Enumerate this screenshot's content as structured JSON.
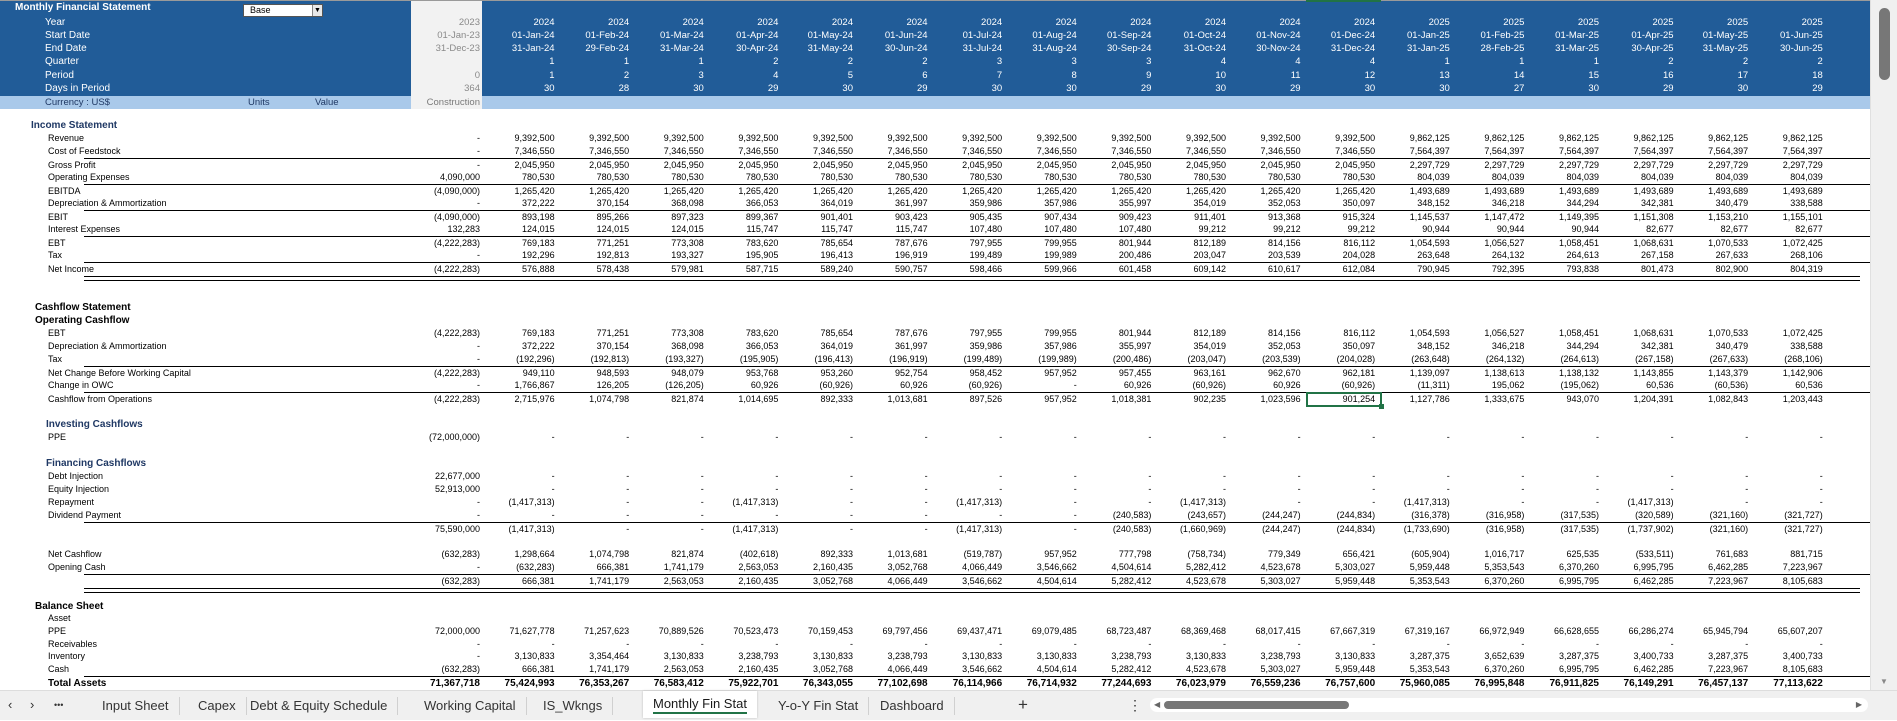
{
  "title": "Monthly Financial Statement",
  "scenario": "Base",
  "header": {
    "rows": [
      {
        "label": "Year",
        "construction": "2023",
        "values": [
          "2024",
          "2024",
          "2024",
          "2024",
          "2024",
          "2024",
          "2024",
          "2024",
          "2024",
          "2024",
          "2024",
          "2024",
          "2025",
          "2025",
          "2025",
          "2025",
          "2025",
          "2025"
        ]
      },
      {
        "label": "Start Date",
        "construction": "01-Jan-23",
        "values": [
          "01-Jan-24",
          "01-Feb-24",
          "01-Mar-24",
          "01-Apr-24",
          "01-May-24",
          "01-Jun-24",
          "01-Jul-24",
          "01-Aug-24",
          "01-Sep-24",
          "01-Oct-24",
          "01-Nov-24",
          "01-Dec-24",
          "01-Jan-25",
          "01-Feb-25",
          "01-Mar-25",
          "01-Apr-25",
          "01-May-25",
          "01-Jun-25"
        ]
      },
      {
        "label": "End Date",
        "construction": "31-Dec-23",
        "values": [
          "31-Jan-24",
          "29-Feb-24",
          "31-Mar-24",
          "30-Apr-24",
          "31-May-24",
          "30-Jun-24",
          "31-Jul-24",
          "31-Aug-24",
          "30-Sep-24",
          "31-Oct-24",
          "30-Nov-24",
          "31-Dec-24",
          "31-Jan-25",
          "28-Feb-25",
          "31-Mar-25",
          "30-Apr-25",
          "31-May-25",
          "30-Jun-25"
        ]
      },
      {
        "label": "Quarter",
        "construction": "",
        "values": [
          "1",
          "1",
          "1",
          "2",
          "2",
          "2",
          "3",
          "3",
          "3",
          "4",
          "4",
          "4",
          "1",
          "1",
          "1",
          "2",
          "2",
          "2"
        ]
      },
      {
        "label": "Period",
        "construction": "0",
        "values": [
          "1",
          "2",
          "3",
          "4",
          "5",
          "6",
          "7",
          "8",
          "9",
          "10",
          "11",
          "12",
          "13",
          "14",
          "15",
          "16",
          "17",
          "18"
        ]
      },
      {
        "label": "Days in Period",
        "construction": "364",
        "values": [
          "30",
          "28",
          "30",
          "29",
          "30",
          "29",
          "30",
          "30",
          "29",
          "30",
          "29",
          "30",
          "30",
          "27",
          "30",
          "29",
          "30",
          "29"
        ]
      }
    ]
  },
  "currency_row": {
    "currency": "Currency : US$",
    "units": "Units",
    "value": "Value",
    "construction": "Construction"
  },
  "rows": [
    {
      "label": "Income Statement"
    },
    {
      "label": "Revenue",
      "values": [
        "-",
        "9,392,500",
        "9,392,500",
        "9,392,500",
        "9,392,500",
        "9,392,500",
        "9,392,500",
        "9,392,500",
        "9,392,500",
        "9,392,500",
        "9,392,500",
        "9,392,500",
        "9,392,500",
        "9,862,125",
        "9,862,125",
        "9,862,125",
        "9,862,125",
        "9,862,125",
        "9,862,125"
      ]
    },
    {
      "label": "Cost of Feedstock",
      "values": [
        "-",
        "7,346,550",
        "7,346,550",
        "7,346,550",
        "7,346,550",
        "7,346,550",
        "7,346,550",
        "7,346,550",
        "7,346,550",
        "7,346,550",
        "7,346,550",
        "7,346,550",
        "7,346,550",
        "7,564,397",
        "7,564,397",
        "7,564,397",
        "7,564,397",
        "7,564,397",
        "7,564,397"
      ]
    },
    {
      "label": "Gross Profit",
      "values": [
        "-",
        "2,045,950",
        "2,045,950",
        "2,045,950",
        "2,045,950",
        "2,045,950",
        "2,045,950",
        "2,045,950",
        "2,045,950",
        "2,045,950",
        "2,045,950",
        "2,045,950",
        "2,045,950",
        "2,297,729",
        "2,297,729",
        "2,297,729",
        "2,297,729",
        "2,297,729",
        "2,297,729"
      ]
    },
    {
      "label": "Operating Expenses",
      "values": [
        "4,090,000",
        "780,530",
        "780,530",
        "780,530",
        "780,530",
        "780,530",
        "780,530",
        "780,530",
        "780,530",
        "780,530",
        "780,530",
        "780,530",
        "780,530",
        "804,039",
        "804,039",
        "804,039",
        "804,039",
        "804,039",
        "804,039"
      ]
    },
    {
      "label": "EBITDA",
      "values": [
        "(4,090,000)",
        "1,265,420",
        "1,265,420",
        "1,265,420",
        "1,265,420",
        "1,265,420",
        "1,265,420",
        "1,265,420",
        "1,265,420",
        "1,265,420",
        "1,265,420",
        "1,265,420",
        "1,265,420",
        "1,493,689",
        "1,493,689",
        "1,493,689",
        "1,493,689",
        "1,493,689",
        "1,493,689"
      ]
    },
    {
      "label": "Depreciation & Ammortization",
      "values": [
        "-",
        "372,222",
        "370,154",
        "368,098",
        "366,053",
        "364,019",
        "361,997",
        "359,986",
        "357,986",
        "355,997",
        "354,019",
        "352,053",
        "350,097",
        "348,152",
        "346,218",
        "344,294",
        "342,381",
        "340,479",
        "338,588"
      ]
    },
    {
      "label": "EBIT",
      "values": [
        "(4,090,000)",
        "893,198",
        "895,266",
        "897,323",
        "899,367",
        "901,401",
        "903,423",
        "905,435",
        "907,434",
        "909,423",
        "911,401",
        "913,368",
        "915,324",
        "1,145,537",
        "1,147,472",
        "1,149,395",
        "1,151,308",
        "1,153,210",
        "1,155,101"
      ]
    },
    {
      "label": "Interest Expenses",
      "values": [
        "132,283",
        "124,015",
        "124,015",
        "124,015",
        "115,747",
        "115,747",
        "115,747",
        "107,480",
        "107,480",
        "107,480",
        "99,212",
        "99,212",
        "99,212",
        "90,944",
        "90,944",
        "90,944",
        "82,677",
        "82,677",
        "82,677"
      ]
    },
    {
      "label": "EBT",
      "values": [
        "(4,222,283)",
        "769,183",
        "771,251",
        "773,308",
        "783,620",
        "785,654",
        "787,676",
        "797,955",
        "799,955",
        "801,944",
        "812,189",
        "814,156",
        "816,112",
        "1,054,593",
        "1,056,527",
        "1,058,451",
        "1,068,631",
        "1,070,533",
        "1,072,425"
      ]
    },
    {
      "label": "Tax",
      "values": [
        "-",
        "192,296",
        "192,813",
        "193,327",
        "195,905",
        "196,413",
        "196,919",
        "199,489",
        "199,989",
        "200,486",
        "203,047",
        "203,539",
        "204,028",
        "263,648",
        "264,132",
        "264,613",
        "267,158",
        "267,633",
        "268,106"
      ]
    },
    {
      "label": "Net Income",
      "values": [
        "(4,222,283)",
        "576,888",
        "578,438",
        "579,981",
        "587,715",
        "589,240",
        "590,757",
        "598,466",
        "599,966",
        "601,458",
        "609,142",
        "610,617",
        "612,084",
        "790,945",
        "792,395",
        "793,838",
        "801,473",
        "802,900",
        "804,319"
      ]
    },
    {
      "label": "Cashflow Statement"
    },
    {
      "label": "Operating Cashflow"
    },
    {
      "label": "EBT",
      "values": [
        "(4,222,283)",
        "769,183",
        "771,251",
        "773,308",
        "783,620",
        "785,654",
        "787,676",
        "797,955",
        "799,955",
        "801,944",
        "812,189",
        "814,156",
        "816,112",
        "1,054,593",
        "1,056,527",
        "1,058,451",
        "1,068,631",
        "1,070,533",
        "1,072,425"
      ]
    },
    {
      "label": "Depreciation & Ammortization",
      "values": [
        "-",
        "372,222",
        "370,154",
        "368,098",
        "366,053",
        "364,019",
        "361,997",
        "359,986",
        "357,986",
        "355,997",
        "354,019",
        "352,053",
        "350,097",
        "348,152",
        "346,218",
        "344,294",
        "342,381",
        "340,479",
        "338,588"
      ]
    },
    {
      "label": "Tax",
      "values": [
        "-",
        "(192,296)",
        "(192,813)",
        "(193,327)",
        "(195,905)",
        "(196,413)",
        "(196,919)",
        "(199,489)",
        "(199,989)",
        "(200,486)",
        "(203,047)",
        "(203,539)",
        "(204,028)",
        "(263,648)",
        "(264,132)",
        "(264,613)",
        "(267,158)",
        "(267,633)",
        "(268,106)"
      ]
    },
    {
      "label": "Net Change Before Working Capital",
      "values": [
        "(4,222,283)",
        "949,110",
        "948,593",
        "948,079",
        "953,768",
        "953,260",
        "952,754",
        "958,452",
        "957,952",
        "957,455",
        "963,161",
        "962,670",
        "962,181",
        "1,139,097",
        "1,138,613",
        "1,138,132",
        "1,143,855",
        "1,143,379",
        "1,142,906"
      ]
    },
    {
      "label": "Change in OWC",
      "values": [
        "-",
        "1,766,867",
        "126,205",
        "(126,205)",
        "60,926",
        "(60,926)",
        "60,926",
        "(60,926)",
        "-",
        "60,926",
        "(60,926)",
        "60,926",
        "(60,926)",
        "(11,311)",
        "195,062",
        "(195,062)",
        "60,536",
        "(60,536)",
        "60,536"
      ]
    },
    {
      "label": "Cashflow from Operations",
      "values": [
        "(4,222,283)",
        "2,715,976",
        "1,074,798",
        "821,874",
        "1,014,695",
        "892,333",
        "1,013,681",
        "897,526",
        "957,952",
        "1,018,381",
        "902,235",
        "1,023,596",
        "901,254",
        "1,127,786",
        "1,333,675",
        "943,070",
        "1,204,391",
        "1,082,843",
        "1,203,443"
      ]
    },
    {
      "label": "Investing Cashflows"
    },
    {
      "label": "PPE",
      "values": [
        "(72,000,000)",
        "-",
        "-",
        "-",
        "-",
        "-",
        "-",
        "-",
        "-",
        "-",
        "-",
        "-",
        "-",
        "-",
        "-",
        "-",
        "-",
        "-",
        "-"
      ]
    },
    {
      "label": "Financing Cashflows"
    },
    {
      "label": "Debt Injection",
      "values": [
        "22,677,000",
        "-",
        "-",
        "-",
        "-",
        "-",
        "-",
        "-",
        "-",
        "-",
        "-",
        "-",
        "-",
        "-",
        "-",
        "-",
        "-",
        "-",
        "-"
      ]
    },
    {
      "label": "Equity Injection",
      "values": [
        "52,913,000",
        "-",
        "-",
        "-",
        "-",
        "-",
        "-",
        "-",
        "-",
        "-",
        "-",
        "-",
        "-",
        "-",
        "-",
        "-",
        "-",
        "-",
        "-"
      ]
    },
    {
      "label": "Repayment",
      "values": [
        "-",
        "(1,417,313)",
        "-",
        "-",
        "(1,417,313)",
        "-",
        "-",
        "(1,417,313)",
        "-",
        "-",
        "(1,417,313)",
        "-",
        "-",
        "(1,417,313)",
        "-",
        "-",
        "(1,417,313)",
        "-",
        "-"
      ]
    },
    {
      "label": "Dividend Payment",
      "values": [
        "-",
        "-",
        "-",
        "-",
        "-",
        "-",
        "-",
        "-",
        "-",
        "(240,583)",
        "(243,657)",
        "(244,247)",
        "(244,834)",
        "(316,378)",
        "(316,958)",
        "(317,535)",
        "(320,589)",
        "(321,160)",
        "(321,727)"
      ]
    },
    {
      "label": "",
      "values": [
        "75,590,000",
        "(1,417,313)",
        "-",
        "-",
        "(1,417,313)",
        "-",
        "-",
        "(1,417,313)",
        "-",
        "(240,583)",
        "(1,660,969)",
        "(244,247)",
        "(244,834)",
        "(1,733,690)",
        "(316,958)",
        "(317,535)",
        "(1,737,902)",
        "(321,160)",
        "(321,727)"
      ]
    },
    {
      "label": "Net Cashflow",
      "values": [
        "(632,283)",
        "1,298,664",
        "1,074,798",
        "821,874",
        "(402,618)",
        "892,333",
        "1,013,681",
        "(519,787)",
        "957,952",
        "777,798",
        "(758,734)",
        "779,349",
        "656,421",
        "(605,904)",
        "1,016,717",
        "625,535",
        "(533,511)",
        "761,683",
        "881,715"
      ]
    },
    {
      "label": "Opening Cash",
      "values": [
        "-",
        "(632,283)",
        "666,381",
        "1,741,179",
        "2,563,053",
        "2,160,435",
        "3,052,768",
        "4,066,449",
        "3,546,662",
        "4,504,614",
        "5,282,412",
        "4,523,678",
        "5,303,027",
        "5,959,448",
        "5,353,543",
        "6,370,260",
        "6,995,795",
        "6,462,285",
        "7,223,967"
      ]
    },
    {
      "label": "",
      "values": [
        "(632,283)",
        "666,381",
        "1,741,179",
        "2,563,053",
        "2,160,435",
        "3,052,768",
        "4,066,449",
        "3,546,662",
        "4,504,614",
        "5,282,412",
        "4,523,678",
        "5,303,027",
        "5,959,448",
        "5,353,543",
        "6,370,260",
        "6,995,795",
        "6,462,285",
        "7,223,967",
        "8,105,683"
      ]
    },
    {
      "label": "Balance Sheet"
    },
    {
      "label": "Asset"
    },
    {
      "label": "PPE",
      "values": [
        "72,000,000",
        "71,627,778",
        "71,257,623",
        "70,889,526",
        "70,523,473",
        "70,159,453",
        "69,797,456",
        "69,437,471",
        "69,079,485",
        "68,723,487",
        "68,369,468",
        "68,017,415",
        "67,667,319",
        "67,319,167",
        "66,972,949",
        "66,628,655",
        "66,286,274",
        "65,945,794",
        "65,607,207"
      ]
    },
    {
      "label": "Receivables",
      "values": [
        "-",
        "-",
        "-",
        "-",
        "-",
        "-",
        "-",
        "-",
        "-",
        "-",
        "-",
        "-",
        "-",
        "-",
        "-",
        "-",
        "-",
        "-",
        "-"
      ]
    },
    {
      "label": "Inventory",
      "values": [
        "-",
        "3,130,833",
        "3,354,464",
        "3,130,833",
        "3,238,793",
        "3,130,833",
        "3,238,793",
        "3,130,833",
        "3,130,833",
        "3,238,793",
        "3,130,833",
        "3,238,793",
        "3,130,833",
        "3,287,375",
        "3,652,639",
        "3,287,375",
        "3,400,733",
        "3,287,375",
        "3,400,733"
      ]
    },
    {
      "label": "Cash",
      "values": [
        "(632,283)",
        "666,381",
        "1,741,179",
        "2,563,053",
        "2,160,435",
        "3,052,768",
        "4,066,449",
        "3,546,662",
        "4,504,614",
        "5,282,412",
        "4,523,678",
        "5,303,027",
        "5,959,448",
        "5,353,543",
        "6,370,260",
        "6,995,795",
        "6,462,285",
        "7,223,967",
        "8,105,683"
      ]
    },
    {
      "label": "Total Assets",
      "values": [
        "71,367,718",
        "75,424,993",
        "76,353,267",
        "76,583,412",
        "75,922,701",
        "76,343,055",
        "77,102,698",
        "76,114,966",
        "76,714,932",
        "77,244,693",
        "76,023,979",
        "76,559,236",
        "76,757,600",
        "75,960,085",
        "76,995,848",
        "76,911,825",
        "76,149,291",
        "76,457,137",
        "77,113,622"
      ]
    }
  ],
  "selected_cell": "901,254",
  "tabbar": {
    "prev": "‹",
    "next": "›",
    "more": "•••",
    "add": "+",
    "options": "⋮",
    "tabs": [
      "Input Sheet",
      "Capex",
      "Debt & Equity Schedule",
      "Working Capital",
      "IS_Wkngs",
      "Monthly Fin Stat",
      "Y-o-Y Fin Stat",
      "Dashboard"
    ],
    "active_tab": "Monthly Fin Stat"
  },
  "colors": {
    "header": "#215c98",
    "subheader": "#a9c9ea",
    "accent": "#217346",
    "section_title": "#1f3864"
  }
}
